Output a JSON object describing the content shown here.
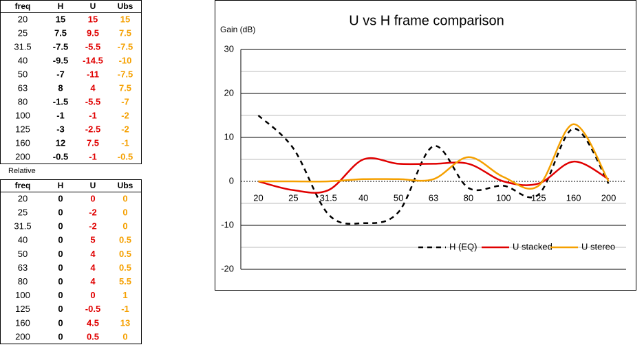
{
  "tables": [
    {
      "header": [
        "freq",
        "H",
        "U",
        "Ubs"
      ],
      "rows": [
        [
          "20",
          "15",
          "15",
          "15"
        ],
        [
          "25",
          "7.5",
          "9.5",
          "7.5"
        ],
        [
          "31.5",
          "-7.5",
          "-5.5",
          "-7.5"
        ],
        [
          "40",
          "-9.5",
          "-14.5",
          "-10"
        ],
        [
          "50",
          "-7",
          "-11",
          "-7.5"
        ],
        [
          "63",
          "8",
          "4",
          "7.5"
        ],
        [
          "80",
          "-1.5",
          "-5.5",
          "-7"
        ],
        [
          "100",
          "-1",
          "-1",
          "-2"
        ],
        [
          "125",
          "-3",
          "-2.5",
          "-2"
        ],
        [
          "160",
          "12",
          "7.5",
          "-1"
        ],
        [
          "200",
          "-0.5",
          "-1",
          "-0.5"
        ]
      ]
    },
    {
      "caption": "Relative",
      "header": [
        "freq",
        "H",
        "U",
        "Ubs"
      ],
      "rows": [
        [
          "20",
          "0",
          "0",
          "0"
        ],
        [
          "25",
          "0",
          "-2",
          "0"
        ],
        [
          "31.5",
          "0",
          "-2",
          "0"
        ],
        [
          "40",
          "0",
          "5",
          "0.5"
        ],
        [
          "50",
          "0",
          "4",
          "0.5"
        ],
        [
          "63",
          "0",
          "4",
          "0.5"
        ],
        [
          "80",
          "0",
          "4",
          "5.5"
        ],
        [
          "100",
          "0",
          "0",
          "1"
        ],
        [
          "125",
          "0",
          "-0.5",
          "-1"
        ],
        [
          "160",
          "0",
          "4.5",
          "13"
        ],
        [
          "200",
          "0",
          "0.5",
          "0"
        ]
      ]
    }
  ],
  "chart_data": {
    "type": "line",
    "title": "U vs H frame comparison",
    "y_label": "Gain (dB)",
    "categories": [
      "20",
      "25",
      "31.5",
      "40",
      "50",
      "63",
      "80",
      "100",
      "125",
      "160",
      "200"
    ],
    "series": [
      {
        "name": "H (EQ)",
        "color": "#000000",
        "dashed": true,
        "values": [
          15,
          7.5,
          -7.5,
          -9.5,
          -7,
          8,
          -1.5,
          -1,
          -3,
          12,
          -0.5
        ]
      },
      {
        "name": "U stacked",
        "color": "#e00000",
        "dashed": false,
        "values": [
          0,
          -2,
          -2,
          5,
          4,
          4,
          4,
          0,
          -0.5,
          4.5,
          0.5
        ]
      },
      {
        "name": "U stereo",
        "color": "#f5a000",
        "dashed": false,
        "values": [
          0,
          0,
          0,
          0.5,
          0.5,
          0.5,
          5.5,
          1,
          -1,
          13,
          0
        ]
      }
    ],
    "ylim": [
      -25,
      30
    ],
    "yticks": [
      -20,
      -10,
      0,
      10,
      20,
      30
    ],
    "grid": true,
    "legend": "bottom-right"
  }
}
